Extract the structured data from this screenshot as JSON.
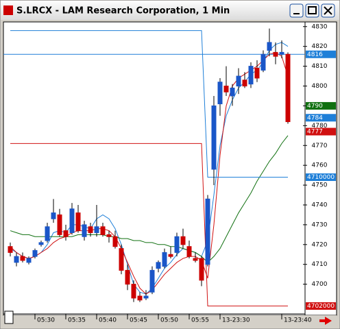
{
  "window": {
    "title": "S.LRCX - LAM Research Corporation, 1 Min"
  },
  "chart_data": {
    "type": "candlestick",
    "categories": [
      null,
      null,
      "05:30",
      null,
      null,
      null,
      null,
      "05:35",
      null,
      null,
      null,
      null,
      "05:40",
      null,
      null,
      null,
      null,
      "05:45",
      null,
      null,
      null,
      null,
      "05:50",
      null,
      null,
      null,
      null,
      "05:55",
      null,
      null,
      null,
      null,
      "13-23:30",
      null,
      null,
      null,
      null,
      null,
      null,
      null,
      null,
      null,
      "13-23:40",
      null,
      null,
      null
    ],
    "open": [
      4719,
      4711,
      4714,
      4711,
      4714,
      4720,
      4722,
      4733,
      4735,
      4727,
      4726,
      4736,
      4724,
      4729,
      4726,
      4729,
      4725,
      4724,
      4718,
      4707,
      4700,
      4694,
      4693,
      4696,
      4708,
      4709,
      4715,
      4716,
      4724,
      4719,
      4713,
      4713,
      4710,
      4758,
      4791,
      4800,
      4795,
      4800,
      4803,
      4801,
      4809,
      4808,
      4818,
      4817,
      4816,
      4816
    ],
    "high": [
      4721,
      4716,
      4716,
      4714,
      4718,
      4722,
      4731,
      4743,
      4738,
      4730,
      4741,
      4740,
      4732,
      4731,
      4740,
      4731,
      4727,
      4727,
      4720,
      4710,
      4702,
      4696,
      4697,
      4709,
      4712,
      4718,
      4719,
      4726,
      4728,
      4722,
      4716,
      4714,
      4745,
      4795,
      4804,
      4810,
      4801,
      4809,
      4807,
      4812,
      4813,
      4818,
      4829,
      4822,
      4823,
      4817
    ],
    "low": [
      4714,
      4709,
      4711,
      4710,
      4713,
      4719,
      4721,
      4731,
      4724,
      4722,
      4725,
      4726,
      4722,
      4724,
      4724,
      4724,
      4721,
      4718,
      4705,
      4697,
      4691,
      4691,
      4692,
      4695,
      4706,
      4708,
      4713,
      4714,
      4718,
      4713,
      4711,
      4699,
      4709,
      4750,
      4785,
      4795,
      4790,
      4796,
      4799,
      4799,
      4802,
      4807,
      4815,
      4811,
      4814,
      4781
    ],
    "close": [
      4716,
      4714,
      4712,
      4713,
      4717,
      4721,
      4729,
      4736,
      4725,
      4724,
      4738,
      4727,
      4730,
      4726,
      4729,
      4725,
      4724,
      4719,
      4707,
      4700,
      4693,
      4692,
      4694,
      4707,
      4711,
      4716,
      4714,
      4724,
      4720,
      4714,
      4712,
      4702,
      4743,
      4790,
      4802,
      4797,
      4799,
      4805,
      4800,
      4810,
      4804,
      4816,
      4822,
      4815,
      4817,
      4782
    ],
    "up_color": "#1a56c8",
    "down_color": "#cc0000",
    "lines": [
      {
        "color": "#1e7fd8",
        "values": [
          4718,
          4716,
          4714,
          4713,
          4714,
          4716,
          4720,
          4726,
          4727,
          4726,
          4730,
          4730,
          4729,
          4728,
          4733,
          4735,
          4733,
          4728,
          4720,
          4710,
          4700,
          4696,
          4695,
          4698,
          4703,
          4708,
          4711,
          4715,
          4718,
          4717,
          4716,
          4714,
          4722,
          4745,
          4770,
          4785,
          4793,
          4799,
          4802,
          4806,
          4808,
          4812,
          4818,
          4821,
          4822,
          4820
        ]
      },
      {
        "color": "#d01010",
        "values": [
          4719,
          4716,
          4714,
          4713,
          4714,
          4716,
          4718,
          4721,
          4723,
          4724,
          4726,
          4727,
          4727,
          4727,
          4728,
          4728,
          4727,
          4724,
          4718,
          4711,
          4704,
          4698,
          4695,
          4697,
          4701,
          4705,
          4708,
          4711,
          4713,
          4714,
          4714,
          4712,
          4703,
          4730,
          4765,
          4790,
          4800,
          4804,
          4806,
          4808,
          4810,
          4813,
          4816,
          4817,
          4815,
          4805
        ]
      },
      {
        "color": "#107010",
        "values": [
          4727,
          4726,
          4725,
          4725,
          4724,
          4724,
          4724,
          4724,
          4724,
          4724,
          4724,
          4725,
          4725,
          4725,
          4725,
          4725,
          4724,
          4724,
          4723,
          4723,
          4722,
          4722,
          4721,
          4721,
          4720,
          4720,
          4719,
          4719,
          4718,
          4717,
          4716,
          4714,
          4711,
          4714,
          4718,
          4724,
          4730,
          4736,
          4741,
          4746,
          4752,
          4757,
          4762,
          4766,
          4771,
          4775
        ]
      },
      {
        "color": "#1e7fd8",
        "values": [
          4828,
          4828,
          4828,
          4828,
          4828,
          4828,
          4828,
          4828,
          4828,
          4828,
          4828,
          4828,
          4828,
          4828,
          4828,
          4828,
          4828,
          4828,
          4828,
          4828,
          4828,
          4828,
          4828,
          4828,
          4828,
          4828,
          4828,
          4828,
          4828,
          4828,
          4828,
          4828,
          4754,
          4754,
          4754,
          4754,
          4754,
          4754,
          4754,
          4754,
          4754,
          4754,
          4754,
          4754,
          4754,
          4754
        ]
      },
      {
        "color": "#d01010",
        "values": [
          4771,
          4771,
          4771,
          4771,
          4771,
          4771,
          4771,
          4771,
          4771,
          4771,
          4771,
          4771,
          4771,
          4771,
          4771,
          4771,
          4771,
          4771,
          4771,
          4771,
          4771,
          4771,
          4771,
          4771,
          4771,
          4771,
          4771,
          4771,
          4771,
          4771,
          4771,
          4771,
          4689,
          4689,
          4689,
          4689,
          4689,
          4689,
          4689,
          4689,
          4689,
          4689,
          4689,
          4689,
          4689,
          4689
        ]
      }
    ],
    "ylim": [
      4685,
      4832
    ],
    "yticks": [
      4700,
      4710,
      4720,
      4730,
      4740,
      4750,
      4760,
      4770,
      4780,
      4790,
      4800,
      4810,
      4820,
      4830
    ],
    "price_labels": [
      {
        "value": 4816,
        "color": "#1e7fd8",
        "line": true
      },
      {
        "value": 4790,
        "color": "#107010"
      },
      {
        "value": 4784,
        "color": "#1e7fd8"
      },
      {
        "value": 4777,
        "color": "#d01010"
      },
      {
        "value": 4754,
        "label": "4710000",
        "color": "#1e7fd8"
      },
      {
        "value": 4689,
        "label": "4702000",
        "color": "#d01010"
      }
    ]
  }
}
